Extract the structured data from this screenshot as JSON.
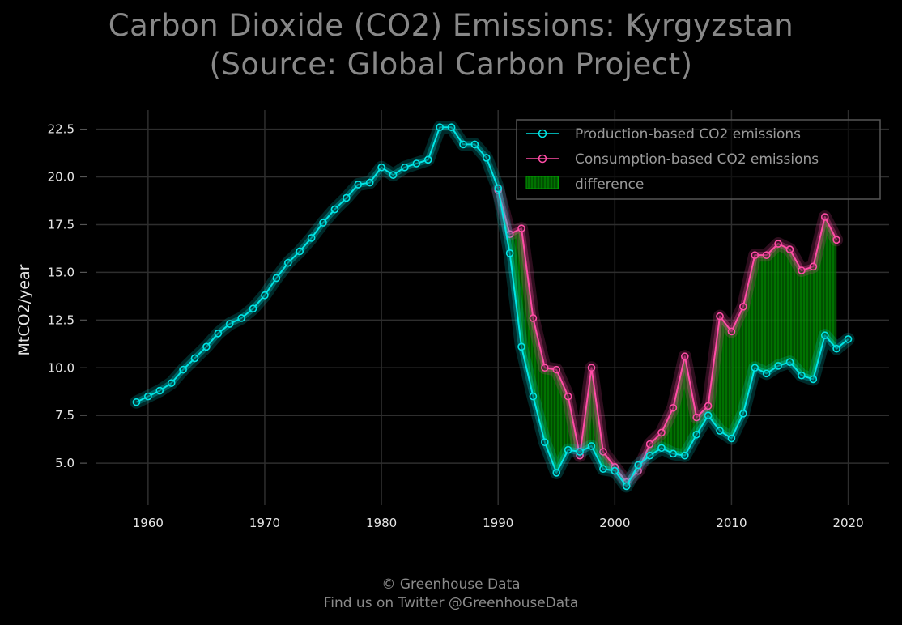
{
  "chart_data": {
    "type": "line",
    "title": "Carbon Dioxide (CO2) Emissions: Kyrgyzstan",
    "subtitle": "(Source: Global Carbon Project)",
    "ylabel": "MtCO2/year",
    "xlim": [
      1955.5,
      2023.5
    ],
    "ylim": [
      2.8,
      23.5
    ],
    "x_ticks": [
      "1960",
      "1970",
      "1980",
      "1990",
      "2000",
      "2010",
      "2020"
    ],
    "y_ticks": [
      "5.0",
      "7.5",
      "10.0",
      "12.5",
      "15.0",
      "17.5",
      "20.0",
      "22.5"
    ],
    "grid": true,
    "legend_position": "top-right",
    "series": [
      {
        "name": "Production-based CO2 emissions",
        "color": "#00e5e5",
        "x": [
          1959,
          1960,
          1961,
          1962,
          1963,
          1964,
          1965,
          1966,
          1967,
          1968,
          1969,
          1970,
          1971,
          1972,
          1973,
          1974,
          1975,
          1976,
          1977,
          1978,
          1979,
          1980,
          1981,
          1982,
          1983,
          1984,
          1985,
          1986,
          1987,
          1988,
          1989,
          1990,
          1991,
          1992,
          1993,
          1994,
          1995,
          1996,
          1997,
          1998,
          1999,
          2000,
          2001,
          2002,
          2003,
          2004,
          2005,
          2006,
          2007,
          2008,
          2009,
          2010,
          2011,
          2012,
          2013,
          2014,
          2015,
          2016,
          2017,
          2018,
          2019,
          2020
        ],
        "values": [
          8.2,
          8.5,
          8.8,
          9.2,
          9.9,
          10.5,
          11.1,
          11.8,
          12.3,
          12.6,
          13.1,
          13.8,
          14.7,
          15.5,
          16.1,
          16.8,
          17.6,
          18.3,
          18.9,
          19.6,
          19.7,
          20.5,
          20.1,
          20.5,
          20.7,
          20.9,
          22.6,
          22.6,
          21.7,
          21.7,
          21.0,
          19.4,
          16.0,
          11.1,
          8.5,
          6.1,
          4.5,
          5.7,
          5.6,
          5.9,
          4.7,
          4.6,
          3.8,
          4.9,
          5.4,
          5.8,
          5.5,
          5.4,
          6.5,
          7.5,
          6.7,
          6.3,
          7.6,
          10.0,
          9.7,
          10.1,
          10.3,
          9.6,
          9.4,
          11.7,
          11.0,
          11.5
        ]
      },
      {
        "name": "Consumption-based CO2 emissions",
        "color": "#ff4da6",
        "x": [
          1990,
          1991,
          1992,
          1993,
          1994,
          1995,
          1996,
          1997,
          1998,
          1999,
          2000,
          2001,
          2002,
          2003,
          2004,
          2005,
          2006,
          2007,
          2008,
          2009,
          2010,
          2011,
          2012,
          2013,
          2014,
          2015,
          2016,
          2017,
          2018,
          2019
        ],
        "values": [
          19.3,
          17.0,
          17.3,
          12.6,
          10.0,
          9.9,
          8.5,
          5.4,
          10.0,
          5.6,
          4.8,
          4.0,
          4.6,
          6.0,
          6.6,
          7.9,
          10.6,
          7.4,
          8.0,
          12.7,
          11.9,
          13.2,
          15.9,
          15.9,
          16.5,
          16.2,
          15.1,
          15.3,
          17.9,
          16.7
        ]
      }
    ],
    "difference_label": "difference",
    "difference_color": "#00a000"
  },
  "footer": {
    "line1": "© Greenhouse Data",
    "line2": "Find us on Twitter @GreenhouseData"
  }
}
